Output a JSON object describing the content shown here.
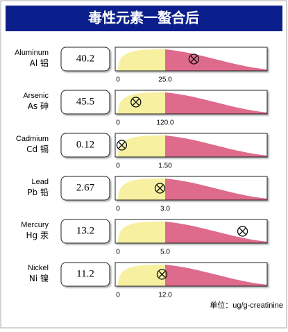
{
  "header": {
    "title": "毒性元素一螯合后"
  },
  "elements": [
    {
      "name": "Aluminum",
      "symbol": "Al",
      "chinese": "铝",
      "value": 40.2,
      "scale_min": 0,
      "reference": {
        "value": 25,
        "label": "25.0"
      }
    },
    {
      "name": "Arsenic",
      "symbol": "As",
      "chinese": "砷",
      "value": 45.5,
      "scale_min": 0,
      "reference": {
        "value": 120,
        "label": "120.0"
      }
    },
    {
      "name": "Cadmium",
      "symbol": "Cd",
      "chinese": "镉",
      "value": 0.12,
      "scale_min": 0,
      "reference": {
        "value": 1.5,
        "label": "1.50"
      }
    },
    {
      "name": "Lead",
      "symbol": "Pb",
      "chinese": "铅",
      "value": 2.67,
      "scale_min": 0,
      "reference": {
        "value": 3,
        "label": "3.0"
      }
    },
    {
      "name": "Mercury",
      "symbol": "Hg",
      "chinese": "汞",
      "value": 13.2,
      "scale_min": 0,
      "reference": {
        "value": 5,
        "label": "5.0"
      }
    },
    {
      "name": "Nickel",
      "symbol": "Ni",
      "chinese": "镍",
      "value": 11.2,
      "scale_min": 0,
      "reference": {
        "value": 12,
        "label": "12.0"
      }
    }
  ],
  "footer": {
    "unit": "单位：ug/g-creatinine"
  }
}
